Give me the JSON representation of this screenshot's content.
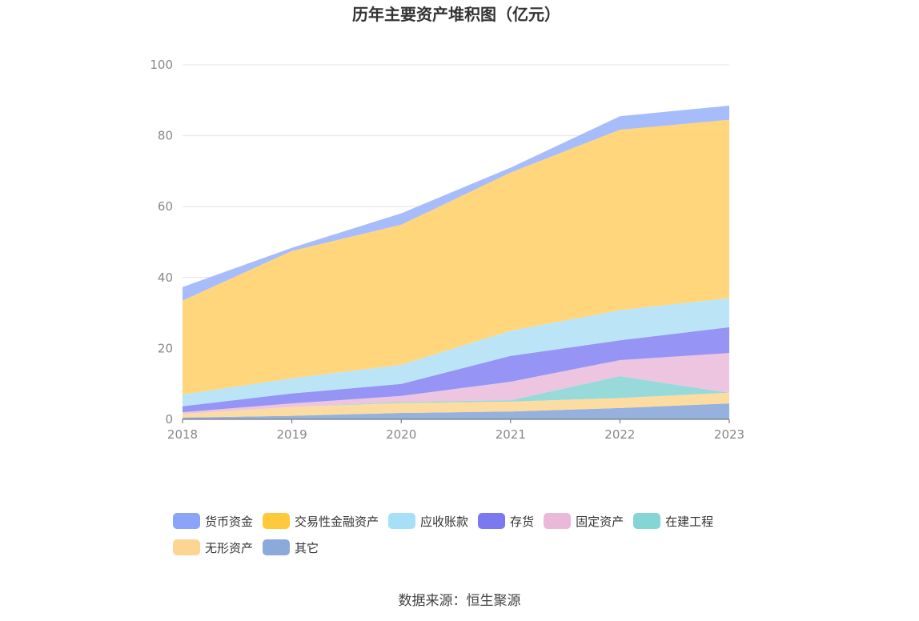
{
  "source_text": "数据来源：恒生聚源",
  "chart_data": {
    "type": "area",
    "stacked": true,
    "title": "历年主要资产堆积图（亿元）",
    "xlabel": "",
    "ylabel": "",
    "categories": [
      "2018",
      "2019",
      "2020",
      "2021",
      "2022",
      "2023"
    ],
    "ylim": [
      0,
      100
    ],
    "yticks": [
      0,
      20,
      40,
      60,
      80,
      100
    ],
    "grid": true,
    "legend_position": "bottom",
    "series": [
      {
        "name": "其它",
        "color": "#8daadb",
        "values": [
          0.5,
          1.0,
          1.8,
          2.2,
          3.2,
          4.5
        ]
      },
      {
        "name": "无形资产",
        "color": "#fdd99a",
        "values": [
          1.0,
          2.5,
          2.8,
          2.8,
          2.8,
          3.0
        ]
      },
      {
        "name": "在建工程",
        "color": "#8fd7d7",
        "values": [
          0.0,
          0.0,
          0.3,
          0.4,
          6.2,
          0.0
        ]
      },
      {
        "name": "固定资产",
        "color": "#ecc0dd",
        "values": [
          0.5,
          1.0,
          1.7,
          5.2,
          4.5,
          11.2
        ]
      },
      {
        "name": "存货",
        "color": "#8d8cf4",
        "values": [
          1.7,
          2.8,
          3.4,
          7.3,
          5.6,
          7.3
        ]
      },
      {
        "name": "应收账款",
        "color": "#b5e3f6",
        "values": [
          3.3,
          4.3,
          5.4,
          7.1,
          8.5,
          8.2
        ]
      },
      {
        "name": "交易性金融资产",
        "color": "#ffd370",
        "values": [
          26.5,
          35.9,
          39.5,
          44.6,
          50.9,
          50.3
        ]
      },
      {
        "name": "货币资金",
        "color": "#9fb6fb",
        "values": [
          3.8,
          0.9,
          3.2,
          1.4,
          3.8,
          4.0
        ]
      }
    ]
  },
  "legend_order": [
    "货币资金",
    "交易性金融资产",
    "应收账款",
    "存货",
    "固定资产",
    "在建工程",
    "无形资产",
    "其它"
  ],
  "legend_colors": [
    "#8aa5f8",
    "#ffc93c",
    "#a6e0f7",
    "#7b78f0",
    "#eab8d8",
    "#85d5d5",
    "#fdd593",
    "#8ca9db"
  ]
}
